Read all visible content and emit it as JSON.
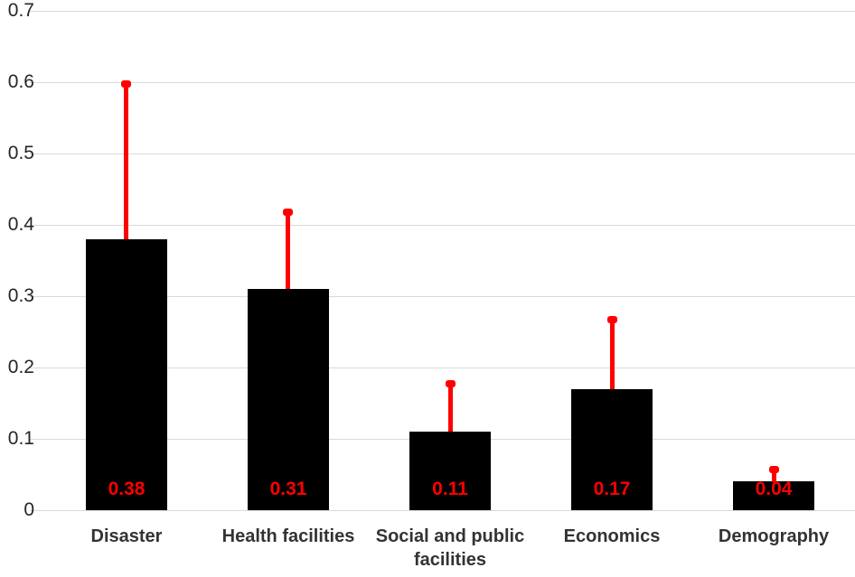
{
  "chart_data": {
    "type": "bar",
    "title": "",
    "xlabel": "",
    "ylabel": "",
    "categories": [
      "Disaster",
      "Health facilities",
      "Social and public facilities",
      "Economics",
      "Demography"
    ],
    "values": [
      0.38,
      0.31,
      0.11,
      0.17,
      0.04
    ],
    "data_labels": [
      "0.38",
      "0.31",
      "0.11",
      "0.17",
      "0.04"
    ],
    "error_upper": [
      0.6,
      0.42,
      0.18,
      0.27,
      0.06
    ],
    "y_ticks": [
      0,
      0.1,
      0.2,
      0.3,
      0.4,
      0.5,
      0.6,
      0.7
    ],
    "y_tick_labels": [
      "0",
      "0.1",
      "0.2",
      "0.3",
      "0.4",
      "0.5",
      "0.6",
      "0.7"
    ],
    "ylim": [
      0,
      0.7
    ],
    "grid": true,
    "legend": false,
    "colors": {
      "bar": "#000000",
      "error_bar": "#fe0000",
      "data_label": "#fe0000",
      "tick_label": "#262626",
      "category_label": "#333333",
      "gridline": "#d9d9d9",
      "background": "#ffffff"
    }
  }
}
